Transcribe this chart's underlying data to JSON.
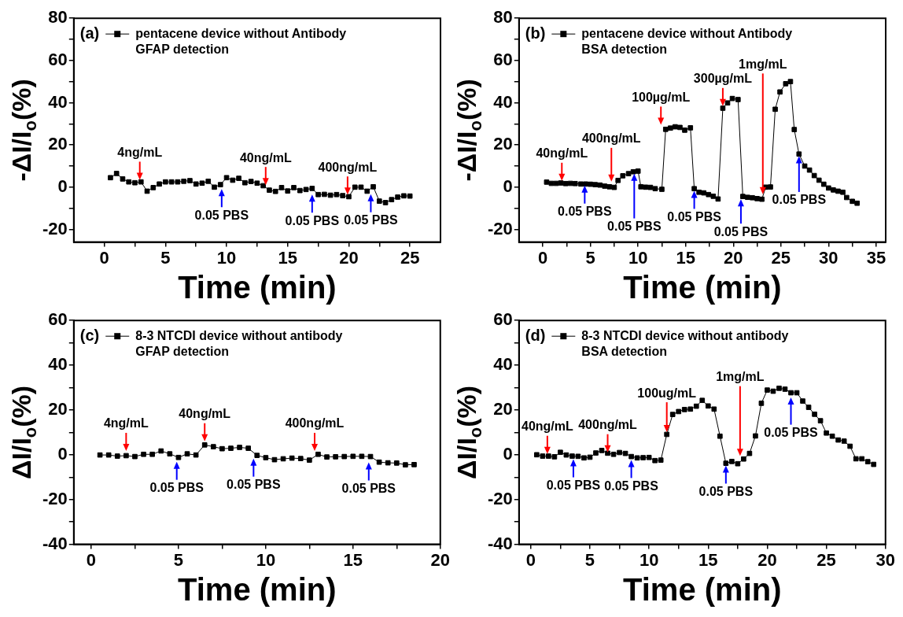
{
  "chart_data": [
    {
      "type": "line",
      "xlabel": "Time (min)",
      "ylabel": "-ΔI/I$_{o}$(%)",
      "legend": "top left",
      "marker": "square",
      "line_style": "solid",
      "xlim": [
        -2.5,
        27.5
      ],
      "ylim": [
        -26,
        80
      ],
      "xticks": [
        0,
        {
          "value": 2.5,
          "label": null
        },
        5,
        {
          "value": 7.5,
          "label": null
        },
        10,
        {
          "value": 12.5,
          "label": null
        },
        15,
        {
          "value": 17.5,
          "label": null
        },
        20,
        {
          "value": 22.5,
          "label": null
        },
        25
      ],
      "yticks": [
        -20,
        {
          "value": -10,
          "label": null
        },
        0,
        {
          "value": 10,
          "label": null
        },
        20,
        {
          "value": 30,
          "label": null
        },
        40,
        {
          "value": 50,
          "label": null
        },
        60,
        {
          "value": 70,
          "label": null
        },
        80
      ],
      "x": [
        0.5,
        1,
        1.5,
        2,
        2.5,
        3,
        3.5,
        4,
        4.5,
        5,
        5.5,
        6,
        6.5,
        7,
        7.5,
        8,
        8.5,
        9,
        9.5,
        10,
        10.5,
        11,
        11.5,
        12,
        12.5,
        13,
        13.5,
        14,
        14.5,
        15,
        15.5,
        16,
        16.5,
        17,
        17.5,
        18,
        18.5,
        19,
        19.5,
        20,
        20.5,
        21,
        21.5,
        22,
        22.5,
        23,
        23.5,
        24,
        24.5,
        25
      ],
      "series": [
        {
          "name": "pentacene device without Antibody GFAP detection",
          "color": "#000000",
          "values": [
            4.5,
            6.5,
            3.9,
            2.5,
            2.1,
            2.5,
            -1.9,
            -0.2,
            1.5,
            2.5,
            2.5,
            2.5,
            2.8,
            3.1,
            1.5,
            1.9,
            2.8,
            0,
            1.2,
            4.5,
            3.3,
            4.2,
            2.1,
            2.7,
            1.9,
            0.7,
            -1.4,
            -2.0,
            -0.2,
            -1.8,
            -0.2,
            -1.6,
            -1.1,
            -0.6,
            -3.5,
            -3.4,
            -3.8,
            -3.5,
            -4.0,
            -4.5,
            0,
            0,
            -1.9,
            0.2,
            -6.6,
            -7.3,
            -5.9,
            -4.7,
            -4.1,
            -4.2
          ]
        }
      ],
      "annotations": [
        "(a)",
        {
          "text": "4ng/mL",
          "x": 2.9,
          "y": 3.5
        },
        {
          "text": "40ng/mL",
          "x": 13.2,
          "y": 1
        },
        {
          "text": "400ng/mL",
          "x": 19.9,
          "y": -3.5
        },
        {
          "text": "0.05 PBS",
          "x": 9.6,
          "y": -0.9
        },
        {
          "text": "0.05 PBS",
          "x": 17,
          "y": -3.5
        },
        {
          "text": "0.05 PBS",
          "x": 21.8,
          "y": -3.3
        }
      ]
    },
    {
      "type": "line",
      "xlabel": "Time (min)",
      "ylabel": "-ΔI/I$_{o}$(%)",
      "legend": "top left",
      "marker": "square",
      "line_style": "solid",
      "xlim": [
        -2.5,
        36
      ],
      "ylim": [
        -26,
        80
      ],
      "xticks": [
        0,
        {
          "value": 2.5,
          "label": null
        },
        5,
        {
          "value": 7.5,
          "label": null
        },
        10,
        {
          "value": 12.5,
          "label": null
        },
        15,
        {
          "value": 17.5,
          "label": null
        },
        20,
        {
          "value": 22.5,
          "label": null
        },
        25,
        {
          "value": 27.5,
          "label": null
        },
        30,
        {
          "value": 32.5,
          "label": null
        },
        35
      ],
      "yticks": [
        -20,
        {
          "value": -10,
          "label": null
        },
        0,
        {
          "value": 10,
          "label": null
        },
        20,
        {
          "value": 30,
          "label": null
        },
        40,
        {
          "value": 50,
          "label": null
        },
        60,
        {
          "value": 70,
          "label": null
        },
        80
      ],
      "x": [
        0.4,
        0.9,
        1.4,
        1.9,
        2.4,
        2.9,
        3.4,
        4.0,
        4.5,
        5.0,
        5.5,
        6.0,
        6.5,
        7.0,
        7.5,
        7.9,
        8.4,
        9.0,
        9.5,
        10.0,
        10.3,
        10.8,
        11.3,
        11.8,
        12.5,
        12.9,
        13.4,
        13.9,
        14.4,
        14.9,
        15.5,
        15.9,
        16.4,
        16.9,
        17.4,
        17.9,
        18.4,
        18.9,
        19.4,
        19.9,
        20.5,
        21.0,
        21.5,
        22.0,
        22.5,
        23.0,
        23.4,
        23.9,
        24.4,
        24.9,
        25.5,
        26.0,
        26.4,
        26.9,
        27.5,
        28.0,
        28.5,
        29.0,
        29.5,
        30.0,
        30.5,
        31.0,
        31.5,
        31.9,
        32.5,
        33.0
      ],
      "series": [
        {
          "name": "pentacene device without Antibody BSA detection",
          "color": "#000000",
          "values": [
            2.4,
            1.8,
            1.8,
            2.0,
            1.7,
            1.8,
            1.7,
            1.5,
            1.5,
            1.4,
            1.2,
            1.0,
            0.5,
            0.2,
            -0.1,
            3.2,
            5.4,
            6.4,
            7.3,
            7.6,
            0.2,
            0,
            -0.1,
            -0.7,
            -1.0,
            27.4,
            28.0,
            28.6,
            28.3,
            27.0,
            28.1,
            -0.7,
            -2.4,
            -2.7,
            -3.5,
            -4.3,
            -5.6,
            37.4,
            39.9,
            42.0,
            41.5,
            -4.4,
            -4.8,
            -5.0,
            -5.4,
            -5.7,
            0,
            0.1,
            36.9,
            45.1,
            49.0,
            50.0,
            27.3,
            15.7,
            10.0,
            8.1,
            5.5,
            3.3,
            1.4,
            -0.4,
            -1.3,
            -1.9,
            -2.4,
            -4.9,
            -6.7,
            -7.6
          ]
        }
      ],
      "annotations": [
        "(b)",
        {
          "text": "40ng/mL",
          "x": 2.0,
          "y": 3
        },
        {
          "text": "400ng/mL",
          "x": 7.2,
          "y": 2.6
        },
        {
          "text": "100µg/mL",
          "x": 12.4,
          "y": 29.6
        },
        {
          "text": "300µg/mL",
          "x": 18.9,
          "y": 38.4
        },
        {
          "text": "1mg/mL",
          "x": 23.1,
          "y": -3.3
        },
        {
          "text": "0.05 PBS",
          "x": 4.4,
          "y": 0.8
        },
        {
          "text": "0.05 PBS",
          "x": 9.6,
          "y": 6.4
        },
        {
          "text": "0.05 PBS",
          "x": 15.9,
          "y": -1.7
        },
        {
          "text": "0.05 PBS",
          "x": 20.8,
          "y": -5.7
        },
        {
          "text": "0.05 PBS",
          "x": 26.9,
          "y": 14.7
        }
      ]
    },
    {
      "type": "line",
      "xlabel": "Time (min)",
      "ylabel": "ΔI/I$_{o}$(%)",
      "legend": "top left",
      "marker": "square",
      "line_style": "solid",
      "xlim": [
        -1,
        20
      ],
      "ylim": [
        -40,
        60
      ],
      "xticks": [
        0,
        {
          "value": 2.5,
          "label": null
        },
        5,
        {
          "value": 7.5,
          "label": null
        },
        10,
        {
          "value": 12.5,
          "label": null
        },
        15,
        {
          "value": 17.5,
          "label": null
        },
        20
      ],
      "yticks": [
        -40,
        {
          "value": -30,
          "label": null
        },
        -20,
        {
          "value": -10,
          "label": null
        },
        0,
        {
          "value": 10,
          "label": null
        },
        20,
        {
          "value": 30,
          "label": null
        },
        40,
        {
          "value": 50,
          "label": null
        },
        60
      ],
      "x": [
        0.5,
        1,
        1.5,
        2,
        2.5,
        3,
        3.5,
        4,
        4.5,
        5,
        5.5,
        6,
        6.5,
        7,
        7.5,
        8,
        8.5,
        9,
        9.5,
        10,
        10.5,
        11,
        11.5,
        12,
        12.5,
        13,
        13.5,
        14,
        14.5,
        15,
        15.5,
        16,
        16.5,
        17,
        17.5,
        18,
        18.5
      ],
      "series": [
        {
          "name": "8-3 NTCDI device without antibody GFAP detection",
          "color": "#000000",
          "values": [
            -0.1,
            -0.1,
            -0.6,
            -0.4,
            -0.8,
            0.2,
            0.2,
            1.7,
            0.4,
            -1.2,
            0.4,
            -0.1,
            4.4,
            3.6,
            2.7,
            2.9,
            3.3,
            2.9,
            -0.3,
            -1.3,
            -2.2,
            -1.8,
            -1.5,
            -1.7,
            -2.4,
            0.2,
            -1.0,
            -0.9,
            -0.8,
            -0.7,
            -0.7,
            -0.8,
            -3.3,
            -3.6,
            -3.7,
            -4.5,
            -4.4
          ]
        }
      ],
      "annotations": [
        "(c)",
        {
          "text": "4ng/mL",
          "x": 2.0,
          "y": 1.7
        },
        {
          "text": "40ng/mL",
          "x": 6.5,
          "y": 6.0
        },
        {
          "text": "400ng/mL",
          "x": 12.8,
          "y": 1.7
        },
        {
          "text": "0.05 PBS",
          "x": 4.9,
          "y": -3.1
        },
        {
          "text": "0.05 PBS",
          "x": 9.3,
          "y": -1.7
        },
        {
          "text": "0.05 PBS",
          "x": 15.9,
          "y": -3.4
        }
      ]
    },
    {
      "type": "line",
      "xlabel": "Time (min)",
      "ylabel": "ΔI/I$_{o}$(%)",
      "legend": "top left",
      "marker": "square",
      "line_style": "solid",
      "xlim": [
        -1,
        30
      ],
      "ylim": [
        -40,
        60
      ],
      "xticks": [
        0,
        {
          "value": 2.5,
          "label": null
        },
        5,
        {
          "value": 7.5,
          "label": null
        },
        10,
        {
          "value": 12.5,
          "label": null
        },
        15,
        {
          "value": 17.5,
          "label": null
        },
        20,
        {
          "value": 22.5,
          "label": null
        },
        25,
        {
          "value": 27.5,
          "label": null
        },
        30
      ],
      "yticks": [
        -40,
        {
          "value": -30,
          "label": null
        },
        -20,
        {
          "value": -10,
          "label": null
        },
        0,
        {
          "value": 10,
          "label": null
        },
        20,
        {
          "value": 30,
          "label": null
        },
        40,
        {
          "value": 50,
          "label": null
        },
        60
      ],
      "x": [
        0.5,
        1,
        1.5,
        2,
        2.5,
        3,
        3.5,
        4,
        4.5,
        5,
        5.5,
        6,
        6.5,
        7,
        7.5,
        8,
        8.5,
        9,
        9.5,
        10,
        10.5,
        11,
        11.5,
        12,
        12.5,
        13,
        13.5,
        14,
        14.5,
        15,
        15.5,
        16,
        16.5,
        17,
        17.5,
        18,
        18.5,
        19,
        19.5,
        20,
        20.5,
        21,
        21.5,
        22,
        22.5,
        23,
        23.5,
        24,
        24.5,
        25,
        25.5,
        26,
        26.5,
        27,
        27.5,
        28,
        28.5,
        29
      ],
      "series": [
        {
          "name": "8-3 NTCDI device without antibody BSA detection",
          "color": "#000000",
          "values": [
            0,
            -0.6,
            -0.6,
            -0.9,
            1.1,
            -0.1,
            -0.6,
            -0.7,
            -1.4,
            -1.1,
            0.8,
            1.9,
            0.7,
            0.2,
            1.0,
            0.6,
            -0.8,
            -1.4,
            -1.3,
            -1.2,
            -2.6,
            -2.4,
            9.1,
            18.0,
            19.3,
            20.2,
            20.4,
            21.7,
            24.3,
            21.8,
            20.4,
            8.3,
            -3.8,
            -3.0,
            -4.0,
            -1.9,
            0.6,
            8.4,
            23.0,
            28.9,
            28.4,
            29.7,
            29.3,
            27.7,
            27.7,
            24.0,
            21.2,
            18.1,
            15.2,
            9.7,
            8.3,
            6.6,
            6.1,
            3.8,
            -1.8,
            -1.8,
            -3.1,
            -4.3
          ]
        }
      ],
      "annotations": [
        "(d)",
        {
          "text": "40ng/mL",
          "x": 1.4,
          "y": 0.4
        },
        {
          "text": "400ng/mL",
          "x": 6.5,
          "y": 1.1
        },
        {
          "text": "100ug/mL",
          "x": 11.5,
          "y": 10.1
        },
        {
          "text": "1mg/mL",
          "x": 17.7,
          "y": -0.5
        },
        {
          "text": "0.05 PBS",
          "x": 3.6,
          "y": -2.0
        },
        {
          "text": "0.05 PBS",
          "x": 8.5,
          "y": -2.3
        },
        {
          "text": "0.05 PBS",
          "x": 16.5,
          "y": -4.8
        },
        {
          "text": "0.05 PBS",
          "x": 22.0,
          "y": 25.6
        }
      ]
    }
  ]
}
